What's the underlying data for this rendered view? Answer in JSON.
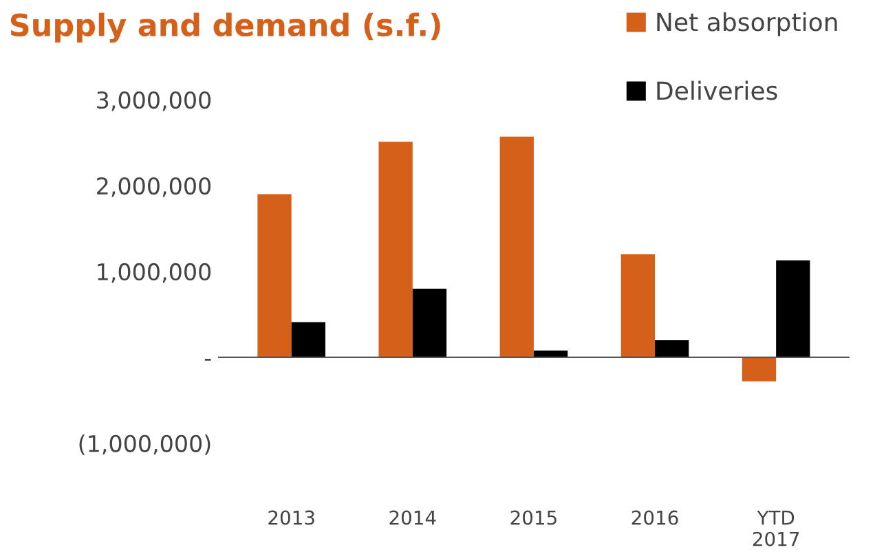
{
  "chart_data": {
    "type": "bar",
    "title": "Supply and demand (s.f.)",
    "categories": [
      "2013",
      "2014",
      "2015",
      "2016",
      "YTD\n2017"
    ],
    "series": [
      {
        "name": "Net absorption",
        "color": "#d4601a",
        "values": [
          1900000,
          2510000,
          2570000,
          1200000,
          -280000
        ]
      },
      {
        "name": "Deliveries",
        "color": "#000000",
        "values": [
          410000,
          800000,
          80000,
          200000,
          1130000
        ]
      }
    ],
    "ylim": [
      -1000000,
      3000000
    ],
    "yticks": [
      {
        "value": -1000000,
        "label": "(1,000,000)"
      },
      {
        "value": 0,
        "label": "-"
      },
      {
        "value": 1000000,
        "label": "1,000,000"
      },
      {
        "value": 2000000,
        "label": "2,000,000"
      },
      {
        "value": 3000000,
        "label": "3,000,000"
      }
    ],
    "legend": "top right"
  }
}
